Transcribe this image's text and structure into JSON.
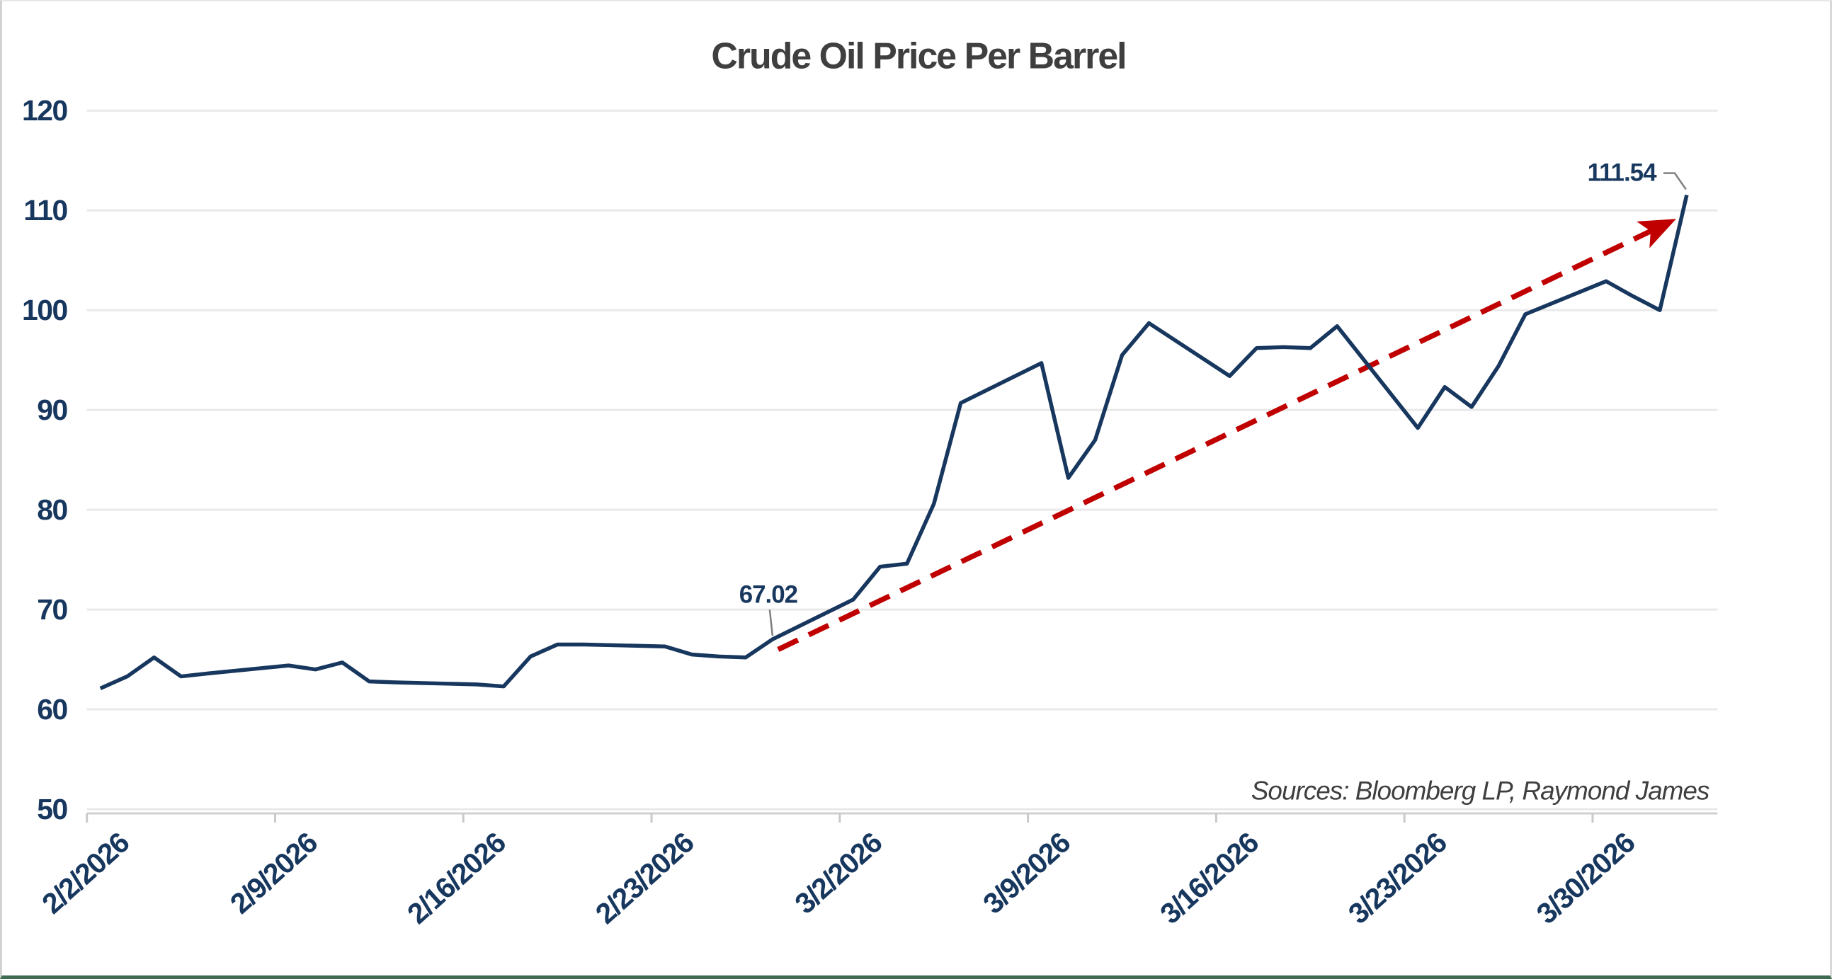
{
  "title": "Crude Oil Price Per Barrel",
  "source_note": "Sources: Bloomberg LP, Raymond James",
  "colors": {
    "series_line": "#17375E",
    "trend_line": "#C00000",
    "axis_label": "#17375E",
    "title_text": "#3F3F3F",
    "source_text": "#3F3F3F",
    "gridline": "#E9E9E9",
    "axis_line": "#CFCFCF",
    "tick_mark": "#C9C9C9",
    "leader_line": "#7F7F7F",
    "background": "#FFFFFF"
  },
  "chart_data": {
    "type": "line",
    "title": "Crude Oil Price Per Barrel",
    "series_name": "Crude Oil Price Per Barrel",
    "x": [
      "2/2/2026",
      "2/3/2026",
      "2/4/2026",
      "2/5/2026",
      "2/6/2026",
      "2/9/2026",
      "2/10/2026",
      "2/11/2026",
      "2/12/2026",
      "2/13/2026",
      "2/16/2026",
      "2/17/2026",
      "2/18/2026",
      "2/19/2026",
      "2/20/2026",
      "2/23/2026",
      "2/24/2026",
      "2/25/2026",
      "2/26/2026",
      "2/27/2026",
      "3/2/2026",
      "3/3/2026",
      "3/4/2026",
      "3/5/2026",
      "3/6/2026",
      "3/9/2026",
      "3/10/2026",
      "3/11/2026",
      "3/12/2026",
      "3/13/2026",
      "3/16/2026",
      "3/17/2026",
      "3/18/2026",
      "3/19/2026",
      "3/20/2026",
      "3/23/2026",
      "3/24/2026",
      "3/25/2026",
      "3/26/2026",
      "3/27/2026",
      "3/30/2026",
      "3/31/2026",
      "4/1/2026",
      "4/2/2026"
    ],
    "values": [
      62.1,
      63.3,
      65.2,
      63.3,
      63.6,
      64.4,
      64.0,
      64.7,
      62.8,
      62.7,
      62.5,
      62.3,
      65.3,
      66.5,
      66.5,
      66.3,
      65.5,
      65.3,
      65.2,
      67.02,
      71.0,
      74.3,
      74.6,
      80.6,
      90.7,
      94.7,
      83.2,
      87.0,
      95.5,
      98.7,
      93.4,
      96.2,
      96.3,
      96.2,
      98.4,
      88.2,
      92.3,
      90.3,
      94.4,
      99.6,
      102.9,
      101.4,
      100.0,
      111.54
    ],
    "x_tick_labels": [
      "2/2/2026",
      "2/9/2026",
      "2/16/2026",
      "2/23/2026",
      "3/2/2026",
      "3/9/2026",
      "3/16/2026",
      "3/23/2026",
      "3/30/2026"
    ],
    "y_ticks": [
      50,
      60,
      70,
      80,
      90,
      100,
      110,
      120
    ],
    "ylim": [
      50,
      120
    ],
    "xlabel": "",
    "ylabel": "",
    "grid": "horizontal-only",
    "legend": "none",
    "annotations": [
      {
        "label": "67.02",
        "date": "2/27/2026",
        "value": 67.02
      },
      {
        "label": "111.54",
        "date": "4/2/2026",
        "value": 111.54
      }
    ],
    "trend_line": {
      "style": "dashed",
      "arrow_end": true,
      "start_date": "2/27/2026",
      "start_value": 66.0,
      "end_date": "4/2/2026",
      "end_value": 109.4
    }
  }
}
